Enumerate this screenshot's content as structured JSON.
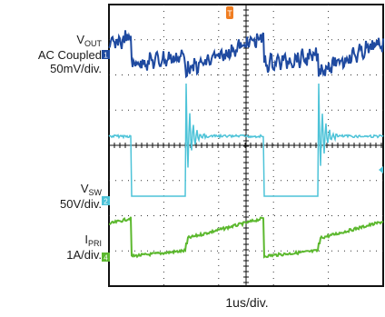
{
  "channels": [
    {
      "id": "vout",
      "name_main": "V",
      "name_sub": "OUT",
      "line2": "AC Coupled",
      "scale": "50mV/div.",
      "marker": "1",
      "color": "#1f4aa0"
    },
    {
      "id": "vsw",
      "name_main": "V",
      "name_sub": "SW",
      "scale": "50V/div.",
      "marker": "2",
      "color": "#4dc3d8"
    },
    {
      "id": "ipri",
      "name_main": "I",
      "name_sub": "PRI",
      "scale": "1A/div.",
      "marker": "4",
      "color": "#5cb82e"
    }
  ],
  "timebase": "1us/div.",
  "trigger_marker": "T",
  "trigger_color": "#f07d21",
  "chart_data": {
    "type": "line",
    "x_unit": "us",
    "x_range": [
      0,
      3
    ],
    "grid": true,
    "divisions": {
      "x": 3,
      "y": 8
    },
    "switching_period_us": 1.5,
    "series": [
      {
        "name": "VOUT",
        "scale": "50mV/div.",
        "shape": "sawtooth ripple with noise",
        "points": [
          [
            0.0,
            0.0
          ],
          [
            0.1,
            0.6
          ],
          [
            0.2,
            -0.2
          ],
          [
            0.45,
            -0.5
          ],
          [
            0.7,
            0.5
          ],
          [
            0.9,
            0.7
          ],
          [
            1.05,
            0.9
          ],
          [
            1.2,
            -0.4
          ],
          [
            1.5,
            0.0
          ]
        ]
      },
      {
        "name": "VSW",
        "scale": "50V/div.",
        "shape": "square wave with ringing on rising edge",
        "points": [
          [
            0.0,
            1.0
          ],
          [
            0.14,
            1.0
          ],
          [
            0.14,
            0.0
          ],
          [
            0.82,
            0.0
          ],
          [
            0.82,
            1.0
          ],
          [
            1.0,
            0.92
          ],
          [
            1.5,
            1.0
          ]
        ]
      },
      {
        "name": "IPRI",
        "scale": "1A/div.",
        "shape": "ramp current during on-time",
        "points": [
          [
            0.0,
            0.1
          ],
          [
            0.14,
            0.15
          ],
          [
            0.14,
            0.85
          ],
          [
            0.55,
            0.0
          ],
          [
            0.82,
            0.05
          ],
          [
            0.82,
            0.35
          ],
          [
            1.5,
            1.0
          ]
        ]
      }
    ]
  }
}
